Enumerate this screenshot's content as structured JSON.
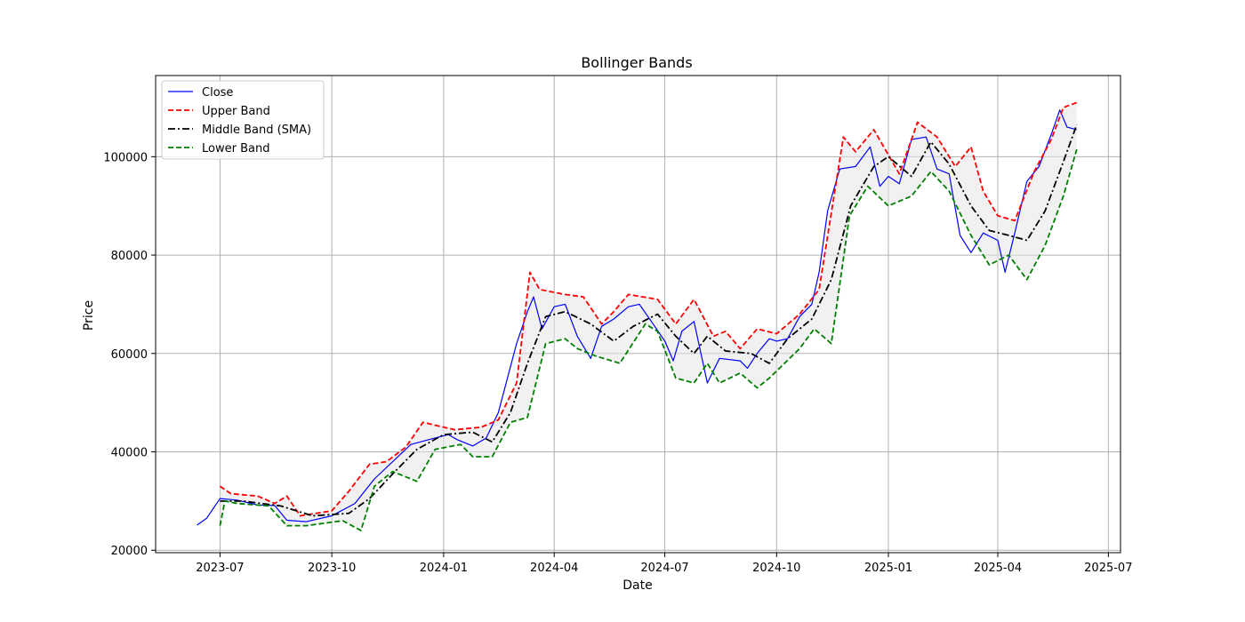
{
  "chart_data": {
    "type": "line",
    "title": "Bollinger Bands",
    "xlabel": "Date",
    "ylabel": "Price",
    "xlim": [
      "2023-05-09",
      "2025-07-11"
    ],
    "ylim": [
      19500,
      116500
    ],
    "x_ticks": [
      "2023-07-01",
      "2023-10-01",
      "2024-01-01",
      "2024-04-01",
      "2024-07-01",
      "2024-10-01",
      "2025-01-01",
      "2025-04-01",
      "2025-07-01"
    ],
    "x_tick_labels": [
      "2023-07",
      "2023-10",
      "2024-01",
      "2024-04",
      "2024-07",
      "2024-10",
      "2025-01",
      "2025-04",
      "2025-07"
    ],
    "y_ticks": [
      20000,
      40000,
      60000,
      80000,
      100000
    ],
    "y_tick_labels": [
      "20000",
      "40000",
      "60000",
      "80000",
      "100000"
    ],
    "grid": true,
    "legend_position": "top-left",
    "band_fill_color": "#e6e6e6",
    "series": [
      {
        "name": "Close",
        "color": "#0000ff",
        "style": "solid",
        "x": [
          "2023-06-12",
          "2023-06-20",
          "2023-07-01",
          "2023-07-15",
          "2023-08-01",
          "2023-08-15",
          "2023-08-25",
          "2023-09-10",
          "2023-10-01",
          "2023-10-20",
          "2023-11-05",
          "2023-12-05",
          "2023-12-20",
          "2024-01-05",
          "2024-01-12",
          "2024-01-25",
          "2024-02-05",
          "2024-02-15",
          "2024-03-01",
          "2024-03-10",
          "2024-03-15",
          "2024-03-22",
          "2024-04-01",
          "2024-04-10",
          "2024-04-20",
          "2024-05-01",
          "2024-05-10",
          "2024-05-20",
          "2024-06-01",
          "2024-06-10",
          "2024-06-20",
          "2024-07-01",
          "2024-07-08",
          "2024-07-15",
          "2024-07-25",
          "2024-08-05",
          "2024-08-15",
          "2024-09-01",
          "2024-09-07",
          "2024-09-15",
          "2024-09-25",
          "2024-10-01",
          "2024-10-10",
          "2024-10-20",
          "2024-10-30",
          "2024-11-05",
          "2024-11-12",
          "2024-11-22",
          "2024-12-05",
          "2024-12-17",
          "2024-12-25",
          "2025-01-01",
          "2025-01-10",
          "2025-01-20",
          "2025-02-01",
          "2025-02-10",
          "2025-02-20",
          "2025-03-01",
          "2025-03-10",
          "2025-03-20",
          "2025-04-01",
          "2025-04-07",
          "2025-04-15",
          "2025-04-25",
          "2025-05-05",
          "2025-05-15",
          "2025-05-22",
          "2025-05-28",
          "2025-06-05"
        ],
        "values": [
          25100,
          26500,
          30500,
          30200,
          29200,
          29100,
          26100,
          25800,
          27000,
          29500,
          34500,
          41500,
          42500,
          43500,
          42500,
          41200,
          42800,
          48000,
          62000,
          68500,
          71500,
          65000,
          69500,
          70000,
          63500,
          59000,
          65500,
          67000,
          69500,
          70000,
          66500,
          62500,
          58500,
          64500,
          66500,
          54000,
          59000,
          58500,
          57000,
          60000,
          63000,
          62500,
          63000,
          67500,
          70000,
          76500,
          89000,
          97500,
          98000,
          102000,
          94000,
          96000,
          94500,
          103500,
          104000,
          97500,
          96500,
          84000,
          80500,
          84500,
          83000,
          76500,
          84500,
          95000,
          98000,
          104500,
          109500,
          106000,
          105500
        ]
      },
      {
        "name": "Upper Band",
        "color": "#ff0000",
        "style": "dashed",
        "x": [
          "2023-07-01",
          "2023-07-10",
          "2023-08-01",
          "2023-08-15",
          "2023-08-25",
          "2023-09-05",
          "2023-10-01",
          "2023-10-15",
          "2023-11-01",
          "2023-11-15",
          "2023-12-01",
          "2023-12-15",
          "2024-01-10",
          "2024-02-01",
          "2024-02-15",
          "2024-03-01",
          "2024-03-12",
          "2024-03-20",
          "2024-04-10",
          "2024-04-25",
          "2024-05-10",
          "2024-05-20",
          "2024-06-01",
          "2024-06-25",
          "2024-07-10",
          "2024-07-25",
          "2024-08-10",
          "2024-08-20",
          "2024-09-01",
          "2024-09-15",
          "2024-10-01",
          "2024-10-20",
          "2024-11-05",
          "2024-11-25",
          "2024-12-05",
          "2024-12-20",
          "2025-01-10",
          "2025-01-25",
          "2025-02-10",
          "2025-02-25",
          "2025-03-10",
          "2025-03-20",
          "2025-04-01",
          "2025-04-15",
          "2025-05-01",
          "2025-05-15",
          "2025-05-25",
          "2025-06-05"
        ],
        "values": [
          33000,
          31500,
          31000,
          29500,
          31000,
          27000,
          28000,
          32000,
          37500,
          38000,
          41000,
          46000,
          44500,
          45000,
          46500,
          54000,
          76500,
          73000,
          72000,
          71500,
          66000,
          68500,
          72000,
          71000,
          66000,
          71000,
          63500,
          64500,
          61000,
          65000,
          64000,
          68000,
          73000,
          104000,
          101000,
          105500,
          96500,
          107000,
          104000,
          98000,
          102000,
          93000,
          88000,
          87000,
          97000,
          103500,
          110000,
          111000
        ]
      },
      {
        "name": "Middle Band (SMA)",
        "color": "#000000",
        "style": "dashdot",
        "x": [
          "2023-07-01",
          "2023-07-20",
          "2023-08-20",
          "2023-09-15",
          "2023-10-15",
          "2023-11-01",
          "2023-11-20",
          "2023-12-10",
          "2024-01-01",
          "2024-01-25",
          "2024-02-10",
          "2024-02-25",
          "2024-03-10",
          "2024-03-25",
          "2024-04-10",
          "2024-05-01",
          "2024-05-20",
          "2024-06-05",
          "2024-06-25",
          "2024-07-10",
          "2024-07-25",
          "2024-08-05",
          "2024-08-20",
          "2024-09-10",
          "2024-09-25",
          "2024-10-10",
          "2024-10-30",
          "2024-11-15",
          "2024-12-01",
          "2024-12-20",
          "2025-01-01",
          "2025-01-20",
          "2025-02-05",
          "2025-02-20",
          "2025-03-10",
          "2025-03-25",
          "2025-04-10",
          "2025-04-25",
          "2025-05-10",
          "2025-05-25",
          "2025-06-05"
        ],
        "values": [
          30000,
          30000,
          29000,
          27000,
          27500,
          30500,
          35500,
          40500,
          43500,
          44000,
          42000,
          48000,
          58000,
          67500,
          68500,
          66000,
          62500,
          65500,
          68000,
          63500,
          60000,
          63500,
          60500,
          60000,
          58000,
          63000,
          67000,
          75000,
          90000,
          98000,
          100000,
          96000,
          103000,
          98500,
          90000,
          85000,
          84000,
          83000,
          89000,
          99000,
          106500
        ]
      },
      {
        "name": "Lower Band",
        "color": "#008000",
        "style": "dashed",
        "x": [
          "2023-07-01",
          "2023-07-05",
          "2023-07-15",
          "2023-08-10",
          "2023-08-25",
          "2023-09-10",
          "2023-10-10",
          "2023-10-25",
          "2023-11-05",
          "2023-11-20",
          "2023-12-10",
          "2023-12-25",
          "2024-01-15",
          "2024-01-25",
          "2024-02-10",
          "2024-02-25",
          "2024-03-10",
          "2024-03-25",
          "2024-04-10",
          "2024-04-20",
          "2024-05-05",
          "2024-05-25",
          "2024-06-15",
          "2024-06-25",
          "2024-07-10",
          "2024-07-25",
          "2024-08-05",
          "2024-08-15",
          "2024-09-01",
          "2024-09-15",
          "2024-09-25",
          "2024-10-20",
          "2024-11-01",
          "2024-11-15",
          "2024-11-30",
          "2024-12-15",
          "2025-01-01",
          "2025-01-20",
          "2025-02-05",
          "2025-02-20",
          "2025-03-10",
          "2025-03-25",
          "2025-04-10",
          "2025-04-25",
          "2025-05-10",
          "2025-05-25",
          "2025-06-05"
        ],
        "values": [
          25000,
          30000,
          29500,
          29000,
          25000,
          25000,
          26000,
          24000,
          33000,
          36000,
          34000,
          40500,
          41500,
          39000,
          39000,
          46000,
          47000,
          62000,
          63000,
          61000,
          59500,
          58000,
          66000,
          64500,
          55000,
          54000,
          58000,
          54000,
          56000,
          53000,
          55000,
          61000,
          65000,
          62000,
          88000,
          94000,
          90000,
          92000,
          97000,
          93000,
          84000,
          78000,
          80000,
          75000,
          82000,
          92000,
          101500
        ]
      }
    ]
  }
}
